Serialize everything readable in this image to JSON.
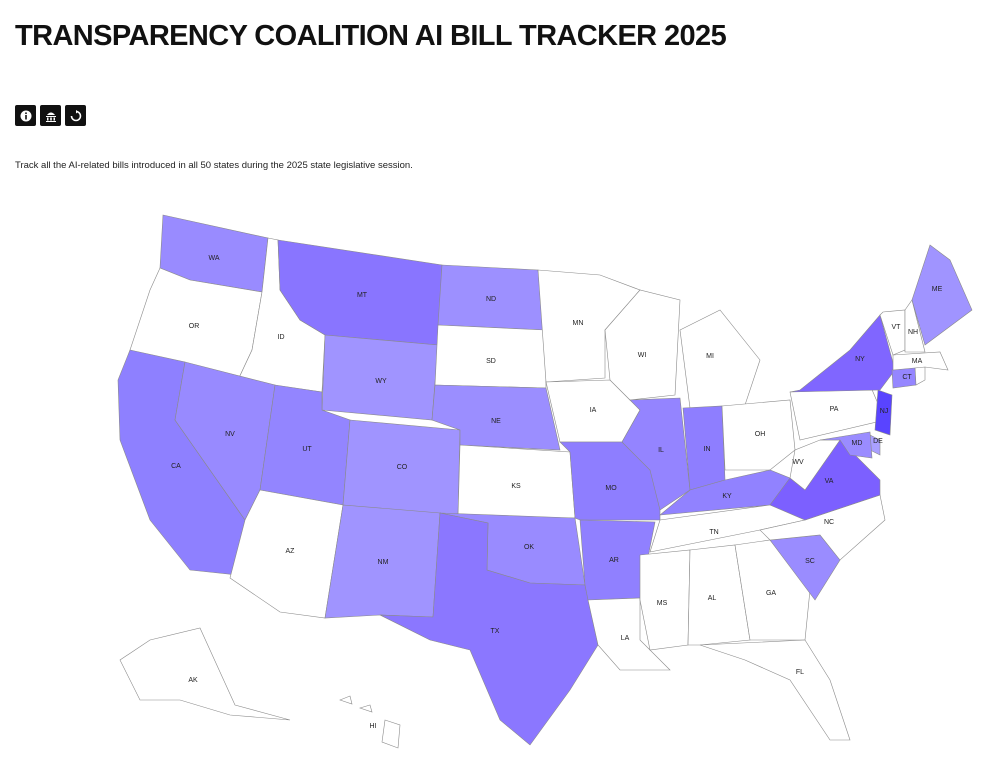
{
  "header": {
    "title": "TRANSPARENCY COALITION AI BILL TRACKER 2025"
  },
  "description": "Track all the AI-related bills introduced in all 50 states during the 2025 state legislative session.",
  "map": {
    "states": [
      {
        "label": "WA",
        "color": "#998bff"
      },
      {
        "label": "OR",
        "color": "#ffffff"
      },
      {
        "label": "ID",
        "color": "#ffffff"
      },
      {
        "label": "MT",
        "color": "#8975ff"
      },
      {
        "label": "WY",
        "color": "#a094ff"
      },
      {
        "label": "CA",
        "color": "#8e80ff"
      },
      {
        "label": "NV",
        "color": "#988aff"
      },
      {
        "label": "UT",
        "color": "#9385ff"
      },
      {
        "label": "AZ",
        "color": "#ffffff"
      },
      {
        "label": "CO",
        "color": "#a094ff"
      },
      {
        "label": "NM",
        "color": "#a094ff"
      },
      {
        "label": "ND",
        "color": "#9d90ff"
      },
      {
        "label": "SD",
        "color": "#ffffff"
      },
      {
        "label": "NE",
        "color": "#9b8eff"
      },
      {
        "label": "KS",
        "color": "#ffffff"
      },
      {
        "label": "OK",
        "color": "#998bff"
      },
      {
        "label": "TX",
        "color": "#8b77ff"
      },
      {
        "label": "MN",
        "color": "#ffffff"
      },
      {
        "label": "IA",
        "color": "#ffffff"
      },
      {
        "label": "MO",
        "color": "#8e7eff"
      },
      {
        "label": "AR",
        "color": "#9080ff"
      },
      {
        "label": "LA",
        "color": "#ffffff"
      },
      {
        "label": "WI",
        "color": "#ffffff"
      },
      {
        "label": "IL",
        "color": "#9484ff"
      },
      {
        "label": "MI",
        "color": "#ffffff"
      },
      {
        "label": "IN",
        "color": "#8e7eff"
      },
      {
        "label": "OH",
        "color": "#ffffff"
      },
      {
        "label": "KY",
        "color": "#9182ff"
      },
      {
        "label": "TN",
        "color": "#ffffff"
      },
      {
        "label": "MS",
        "color": "#ffffff"
      },
      {
        "label": "AL",
        "color": "#ffffff"
      },
      {
        "label": "GA",
        "color": "#ffffff"
      },
      {
        "label": "FL",
        "color": "#ffffff"
      },
      {
        "label": "SC",
        "color": "#9a8cff"
      },
      {
        "label": "NC",
        "color": "#ffffff"
      },
      {
        "label": "VA",
        "color": "#7c60ff"
      },
      {
        "label": "WV",
        "color": "#ffffff"
      },
      {
        "label": "PA",
        "color": "#ffffff"
      },
      {
        "label": "NY",
        "color": "#8066ff"
      },
      {
        "label": "NJ",
        "color": "#5944ff"
      },
      {
        "label": "DE",
        "color": "#aaa0ff"
      },
      {
        "label": "MD",
        "color": "#9a8cff"
      },
      {
        "label": "CT",
        "color": "#9586ff"
      },
      {
        "color": "#ffffff"
      },
      {
        "label": "MA",
        "color": "#ffffff"
      },
      {
        "label": "VT",
        "color": "#ffffff"
      },
      {
        "label": "NH",
        "color": "#ffffff"
      },
      {
        "label": "ME",
        "color": "#a094ff"
      },
      {
        "label": "AK",
        "color": "#ffffff"
      },
      {
        "label": "HI",
        "color": "#ffffff"
      }
    ]
  }
}
